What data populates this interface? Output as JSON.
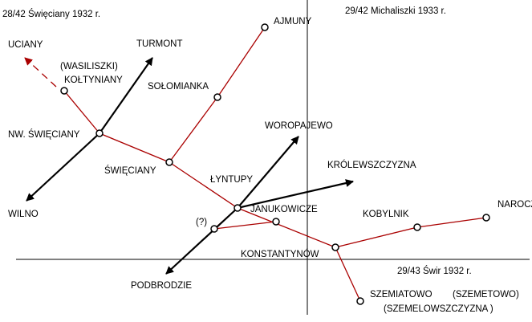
{
  "map_sheets": {
    "top_left": "28/42 Święciany 1932 r.",
    "top_right": "29/42 Michaliszki 1933 r.",
    "bottom_right": "29/43 Świr 1932 r."
  },
  "places": {
    "ajmuny": "AJMUNY",
    "turmont": "TURMONT",
    "ucjany": "UCIANY",
    "wasiliszki": "(WASILISZKI)",
    "koltyniany": "KOŁTYNIANY",
    "solomianka": "SOŁOMIANKA",
    "nw_swieciany": "NW. ŚWIĘCIANY",
    "woropajewo": "WOROPAJEWO",
    "krolewszczyzna": "KRÓLEWSZCZYZNA",
    "swieciany": "ŚWIĘCIANY",
    "lyntupy": "ŁYNTUPY",
    "wilno": "WILNO",
    "janukowicze": "JANUKOWICZE",
    "kobylnik": "KOBYLNIK",
    "narocz": "NAROCZ",
    "unknown": "(?)",
    "konstantynow": "KONSTANTYNÓW",
    "podbrodzie": "PODBRODZIE",
    "szemiatowo": "SZEMIATOWO",
    "szemetowo": "(SZEMETOWO)",
    "szemelowszczyzna": "(SZEMELOWSZCZYZNA )"
  },
  "colors": {
    "railway": "#aa0000",
    "road": "#000000",
    "sheet_border": "#000000"
  }
}
